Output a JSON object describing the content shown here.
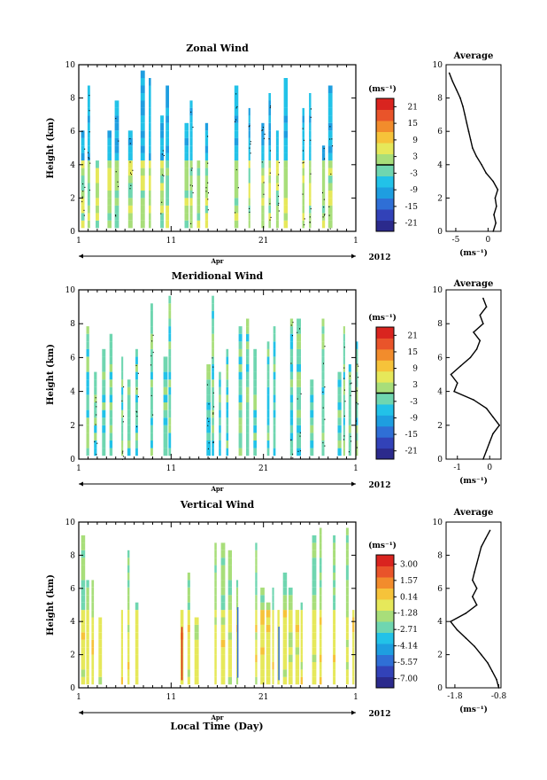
{
  "figure": {
    "xlabel": "Local Time (Day)",
    "x_month": "Apr",
    "year": "2012",
    "x_ticks": [
      "1",
      "11",
      "21",
      "1"
    ],
    "ylabel": "Height (km)",
    "y_ticks": [
      "0",
      "2",
      "4",
      "6",
      "8",
      "10"
    ],
    "colorbar_unit": "(ms⁻¹)",
    "avg_title": "Average",
    "avg_unit": "(ms⁻¹)"
  },
  "colormap": [
    "#2b2a8c",
    "#3242b8",
    "#2f6fd6",
    "#1e9ee0",
    "#22c2e8",
    "#6fd6b0",
    "#a8de7a",
    "#e6e85a",
    "#f6c33a",
    "#f28c2c",
    "#e9542a",
    "#d9241f"
  ],
  "chart_data": [
    {
      "type": "heatmap",
      "title": "Zonal Wind",
      "ylim": [
        0,
        10
      ],
      "xlim": [
        1,
        31
      ],
      "colorbar": {
        "ticks": [
          "21",
          "15",
          "9",
          "3",
          "-3",
          "-9",
          "-15",
          "-21"
        ],
        "range": [
          -24,
          24
        ],
        "marker": 0
      },
      "average": {
        "title": "Average",
        "xticks": [
          "-5",
          "0"
        ],
        "xlim": [
          -6.5,
          2
        ],
        "height": [
          0,
          0.5,
          1.0,
          1.5,
          2.0,
          2.5,
          3.0,
          3.5,
          4.0,
          4.5,
          5.0,
          5.5,
          6.0,
          6.5,
          7.0,
          7.5,
          8.0,
          8.5,
          9.0,
          9.5
        ],
        "values": [
          0.8,
          1.2,
          0.9,
          1.3,
          1.1,
          1.5,
          0.8,
          -0.3,
          -1.0,
          -1.8,
          -2.4,
          -2.7,
          -3.0,
          -3.3,
          -3.6,
          -3.9,
          -4.3,
          -4.9,
          -5.5,
          -6.0
        ]
      }
    },
    {
      "type": "heatmap",
      "title": "Meridional Wind",
      "ylim": [
        0,
        10
      ],
      "xlim": [
        1,
        31
      ],
      "colorbar": {
        "ticks": [
          "21",
          "15",
          "9",
          "3",
          "-3",
          "-9",
          "-15",
          "-21"
        ],
        "range": [
          -24,
          24
        ],
        "marker": 0
      },
      "average": {
        "title": "Average",
        "xticks": [
          "-1",
          "0"
        ],
        "xlim": [
          -1.35,
          0.35
        ],
        "height": [
          0,
          0.5,
          1.0,
          1.5,
          2.0,
          2.5,
          3.0,
          3.5,
          4.0,
          4.5,
          5.0,
          5.5,
          6.0,
          6.5,
          7.0,
          7.5,
          8.0,
          8.5,
          9.0,
          9.5
        ],
        "values": [
          -0.2,
          -0.1,
          0.0,
          0.1,
          0.3,
          0.1,
          -0.1,
          -0.5,
          -1.1,
          -1.0,
          -1.2,
          -0.9,
          -0.6,
          -0.4,
          -0.3,
          -0.5,
          -0.2,
          -0.3,
          -0.1,
          -0.2
        ]
      }
    },
    {
      "type": "heatmap",
      "title": "Vertical Wind",
      "ylim": [
        0,
        10
      ],
      "xlim": [
        1,
        31
      ],
      "colorbar": {
        "ticks": [
          "3.00",
          "1.57",
          "0.14",
          "-1.28",
          "-2.71",
          "-4.14",
          "-5.57",
          "-7.00"
        ],
        "range": [
          -7.8,
          3.8
        ],
        "marker": null
      },
      "average": {
        "title": "Average",
        "xticks": [
          "-1.8",
          "-0.8"
        ],
        "xlim": [
          -2.0,
          -0.75
        ],
        "height": [
          0,
          0.5,
          1.0,
          1.5,
          2.0,
          2.5,
          3.0,
          3.5,
          4.0,
          4.5,
          5.0,
          5.5,
          6.0,
          6.5,
          7.0,
          7.5,
          8.0,
          8.5,
          9.0,
          9.5
        ],
        "values": [
          -0.8,
          -0.85,
          -0.95,
          -1.05,
          -1.2,
          -1.35,
          -1.55,
          -1.75,
          -1.9,
          -1.55,
          -1.3,
          -1.4,
          -1.3,
          -1.4,
          -1.35,
          -1.3,
          -1.25,
          -1.2,
          -1.1,
          -1.0
        ]
      }
    }
  ]
}
